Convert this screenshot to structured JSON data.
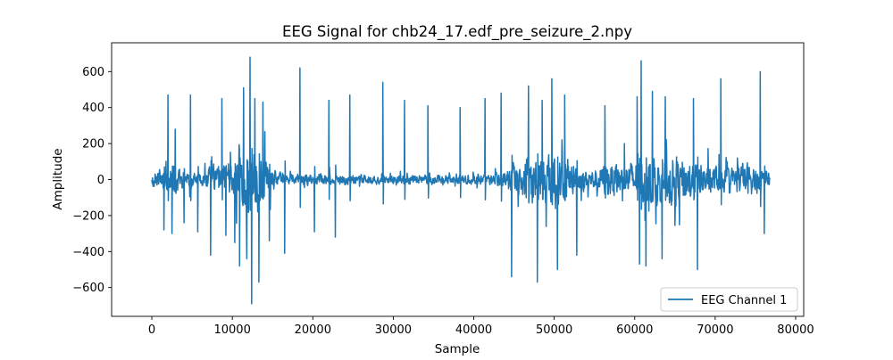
{
  "chart_data": {
    "type": "line",
    "title": "EEG Signal for chb24_17.edf_pre_seizure_2.npy",
    "xlabel": "Sample",
    "ylabel": "Amplitude",
    "xlim": [
      -5000,
      81000
    ],
    "ylim": [
      -760,
      760
    ],
    "xticks": [
      0,
      10000,
      20000,
      30000,
      40000,
      50000,
      60000,
      70000,
      80000
    ],
    "xtick_labels": [
      "0",
      "10000",
      "20000",
      "30000",
      "40000",
      "50000",
      "60000",
      "70000",
      "80000"
    ],
    "yticks": [
      -600,
      -400,
      -200,
      0,
      200,
      400,
      600
    ],
    "ytick_labels": [
      "−600",
      "−400",
      "−200",
      "0",
      "200",
      "400",
      "600"
    ],
    "grid": false,
    "legend_position": "lower-right",
    "series": [
      {
        "name": "EEG Channel 1",
        "color": "#1f77b4",
        "n_samples": 76800,
        "spikes": [
          {
            "x": 1500,
            "y": -280
          },
          {
            "x": 2000,
            "y": 470
          },
          {
            "x": 2500,
            "y": -300
          },
          {
            "x": 2900,
            "y": 280
          },
          {
            "x": 4000,
            "y": -240
          },
          {
            "x": 4800,
            "y": 470
          },
          {
            "x": 5700,
            "y": -290
          },
          {
            "x": 7300,
            "y": -420
          },
          {
            "x": 8700,
            "y": 450
          },
          {
            "x": 9200,
            "y": -310
          },
          {
            "x": 10300,
            "y": -350
          },
          {
            "x": 10900,
            "y": -480
          },
          {
            "x": 11400,
            "y": 510
          },
          {
            "x": 11800,
            "y": -440
          },
          {
            "x": 12200,
            "y": 680
          },
          {
            "x": 12400,
            "y": -690
          },
          {
            "x": 12800,
            "y": 450
          },
          {
            "x": 13300,
            "y": -570
          },
          {
            "x": 13800,
            "y": 430
          },
          {
            "x": 14600,
            "y": -340
          },
          {
            "x": 16500,
            "y": -410
          },
          {
            "x": 18400,
            "y": 620
          },
          {
            "x": 20200,
            "y": -290
          },
          {
            "x": 22000,
            "y": 440
          },
          {
            "x": 22800,
            "y": -320
          },
          {
            "x": 24600,
            "y": 470
          },
          {
            "x": 28700,
            "y": 540
          },
          {
            "x": 31400,
            "y": 440
          },
          {
            "x": 34300,
            "y": 410
          },
          {
            "x": 38300,
            "y": 400
          },
          {
            "x": 41400,
            "y": 450
          },
          {
            "x": 43400,
            "y": 480
          },
          {
            "x": 44700,
            "y": -540
          },
          {
            "x": 46800,
            "y": 520
          },
          {
            "x": 47900,
            "y": -570
          },
          {
            "x": 48500,
            "y": 440
          },
          {
            "x": 49700,
            "y": 560
          },
          {
            "x": 50400,
            "y": -500
          },
          {
            "x": 51300,
            "y": 470
          },
          {
            "x": 52800,
            "y": -420
          },
          {
            "x": 56300,
            "y": 410
          },
          {
            "x": 60300,
            "y": 460
          },
          {
            "x": 60600,
            "y": -470
          },
          {
            "x": 60800,
            "y": 660
          },
          {
            "x": 61400,
            "y": -480
          },
          {
            "x": 62200,
            "y": 490
          },
          {
            "x": 63400,
            "y": -440
          },
          {
            "x": 63800,
            "y": 460
          },
          {
            "x": 67800,
            "y": -500
          },
          {
            "x": 67300,
            "y": 450
          },
          {
            "x": 70700,
            "y": 560
          },
          {
            "x": 75600,
            "y": 600
          },
          {
            "x": 76100,
            "y": -300
          }
        ]
      }
    ]
  }
}
